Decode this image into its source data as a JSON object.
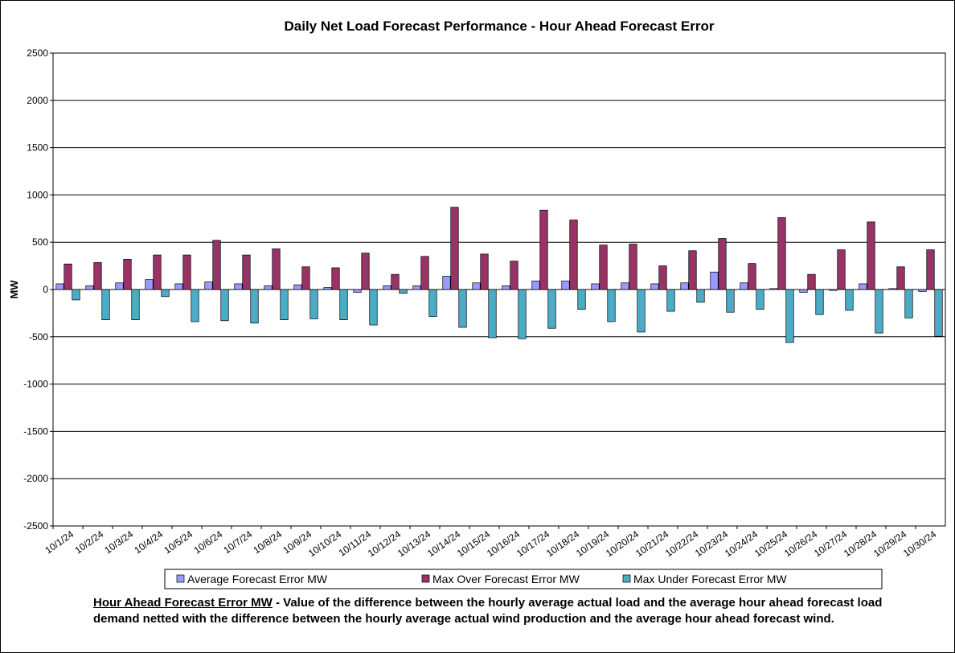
{
  "chart_data": {
    "type": "bar",
    "title": "Daily Net Load Forecast Performance - Hour Ahead Forecast Error",
    "y_label": "MW",
    "categories": [
      "10/1/24",
      "10/2/24",
      "10/3/24",
      "10/4/24",
      "10/5/24",
      "10/6/24",
      "10/7/24",
      "10/8/24",
      "10/9/24",
      "10/10/24",
      "10/11/24",
      "10/12/24",
      "10/13/24",
      "10/14/24",
      "10/15/24",
      "10/16/24",
      "10/17/24",
      "10/18/24",
      "10/19/24",
      "10/20/24",
      "10/21/24",
      "10/22/24",
      "10/23/24",
      "10/24/24",
      "10/25/24",
      "10/26/24",
      "10/27/24",
      "10/28/24",
      "10/29/24",
      "10/30/24"
    ],
    "series": [
      {
        "name": "Average Forecast Error MW",
        "color": "#9999ff",
        "values": [
          60,
          40,
          70,
          105,
          60,
          80,
          60,
          40,
          50,
          20,
          -30,
          40,
          40,
          140,
          70,
          40,
          90,
          90,
          60,
          70,
          60,
          70,
          185,
          70,
          10,
          -30,
          -10,
          60,
          10,
          -20
        ]
      },
      {
        "name": "Max Over Forecast Error MW",
        "color": "#993366",
        "values": [
          270,
          285,
          320,
          365,
          365,
          520,
          365,
          430,
          240,
          230,
          385,
          160,
          350,
          870,
          375,
          300,
          840,
          735,
          470,
          480,
          250,
          410,
          540,
          275,
          760,
          160,
          420,
          715,
          240,
          420
        ]
      },
      {
        "name": "Max Under Forecast Error MW",
        "color": "#4bacc6",
        "values": [
          -110,
          -320,
          -320,
          -75,
          -340,
          -330,
          -355,
          -320,
          -310,
          -320,
          -375,
          -40,
          -285,
          -400,
          -510,
          -520,
          -410,
          -210,
          -340,
          -450,
          -230,
          -135,
          -240,
          -210,
          -560,
          -265,
          -220,
          -460,
          -300,
          -495
        ]
      }
    ],
    "ylim": [
      -2500,
      2500
    ],
    "yticks": [
      -2500,
      -2000,
      -1500,
      -1000,
      -500,
      0,
      500,
      1000,
      1500,
      2000,
      2500
    ],
    "grid": true,
    "legend": "bottom",
    "footnote": {
      "label": "Hour Ahead Forecast Error MW",
      "text": " - Value of the difference between the hourly average actual load and the average hour ahead forecast load demand netted with the difference between the hourly average actual wind production and the average hour ahead forecast wind."
    }
  }
}
